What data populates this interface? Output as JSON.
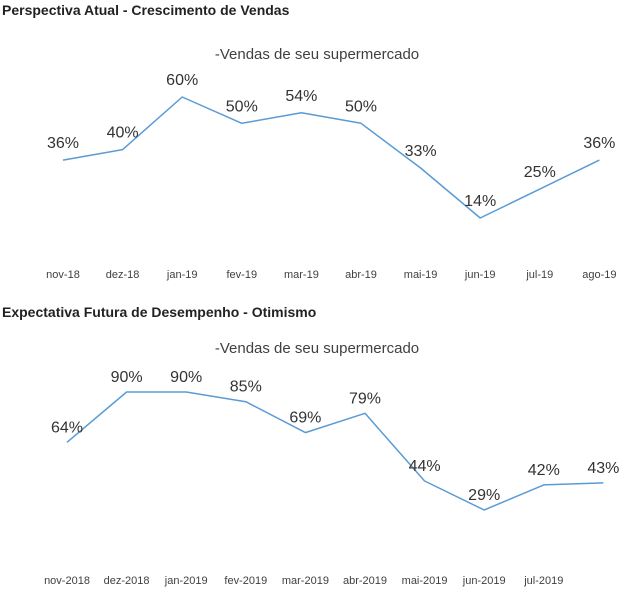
{
  "chart_data": [
    {
      "type": "line",
      "title": "Perspectiva Atual - Crescimento de Vendas",
      "subtitle": "-Vendas de seu supermercado",
      "categories": [
        "nov-18",
        "dez-18",
        "jan-19",
        "fev-19",
        "mar-19",
        "abr-19",
        "mai-19",
        "jun-19",
        "jul-19",
        "ago-19"
      ],
      "series": [
        {
          "name": "",
          "values": [
            36,
            40,
            60,
            50,
            54,
            50,
            33,
            14,
            25,
            36
          ],
          "labels": [
            "36%",
            "40%",
            "60%",
            "50%",
            "54%",
            "50%",
            "33%",
            "14%",
            "25%",
            "36%"
          ]
        }
      ],
      "xlabel": "",
      "ylabel": "",
      "grid": false,
      "legend": "none",
      "line_color": "#5b9bd5"
    },
    {
      "type": "line",
      "title": "Expectativa Futura de Desempenho - Otimismo",
      "subtitle": "-Vendas de seu supermercado",
      "categories": [
        "nov-2018",
        "dez-2018",
        "jan-2019",
        "fev-2019",
        "mar-2019",
        "abr-2019",
        "mai-2019",
        "jun-2019",
        "jul-2019",
        ""
      ],
      "series": [
        {
          "name": "",
          "values": [
            64,
            90,
            90,
            85,
            69,
            79,
            44,
            29,
            42,
            43
          ],
          "labels": [
            "64%",
            "90%",
            "90%",
            "85%",
            "69%",
            "79%",
            "44%",
            "29%",
            "42%",
            "43%"
          ]
        }
      ],
      "xlabel": "",
      "ylabel": "",
      "grid": false,
      "legend": "none",
      "line_color": "#5b9bd5"
    }
  ]
}
